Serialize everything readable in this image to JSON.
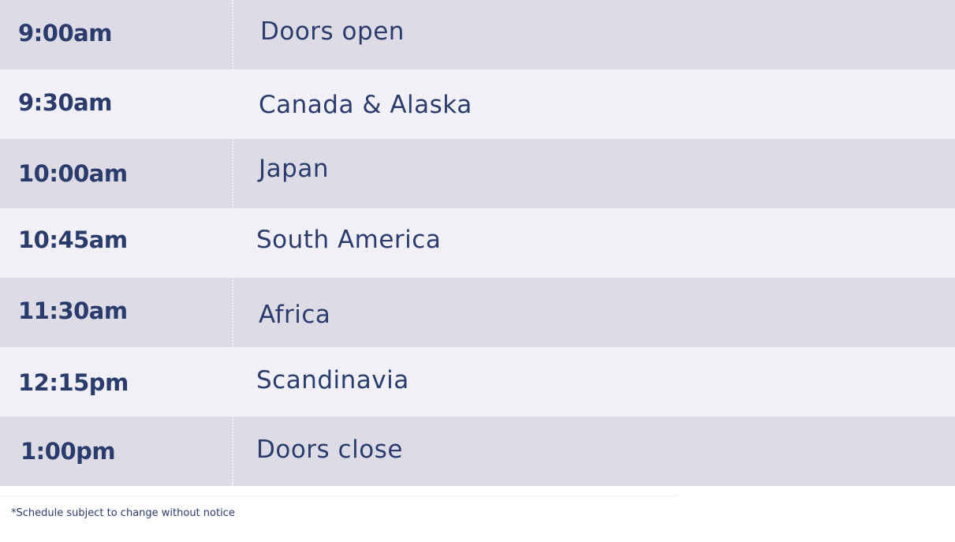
{
  "schedule": [
    {
      "time": "9:00am",
      "event": "Doors open"
    },
    {
      "time": "9:30am",
      "event": "Canada & Alaska"
    },
    {
      "time": "10:00am",
      "event": "Japan"
    },
    {
      "time": "10:45am",
      "event": "South America"
    },
    {
      "time": "11:30am",
      "event": "Africa"
    },
    {
      "time": "12:15pm",
      "event": "Scandinavia"
    },
    {
      "time": "1:00pm",
      "event": "Doors close"
    }
  ],
  "footnote": "*Schedule subject to change without notice",
  "colors": {
    "text": "#2a3b6c",
    "row_dark": "#dddbe5",
    "row_light": "#f1f0f6"
  }
}
